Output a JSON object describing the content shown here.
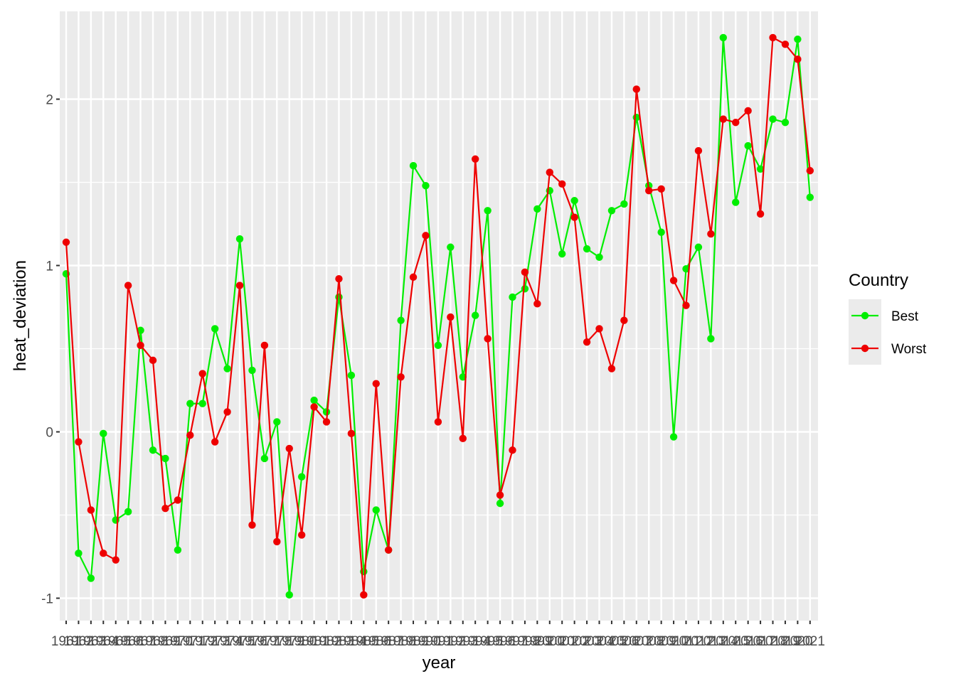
{
  "chart_data": {
    "type": "line",
    "title": "",
    "xlabel": "year",
    "ylabel": "heat_deviation",
    "x_tick_labels_note": "",
    "x": [
      1961,
      1962,
      1963,
      1964,
      1965,
      1966,
      1967,
      1968,
      1969,
      1970,
      1971,
      1972,
      1973,
      1974,
      1975,
      1976,
      1977,
      1978,
      1979,
      1980,
      1981,
      1982,
      1983,
      1984,
      1985,
      1986,
      1987,
      1988,
      1989,
      1990,
      1991,
      1992,
      1993,
      1994,
      1995,
      1996,
      1997,
      1998,
      1999,
      2000,
      2001,
      2002,
      2003,
      2004,
      2005,
      2006,
      2007,
      2008,
      2009,
      2010,
      2011,
      2012,
      2013,
      2014,
      2015,
      2016,
      2017,
      2018,
      2019,
      2020,
      2021
    ],
    "x_tick_labels": [
      "1961",
      "1962",
      "1963",
      "1964",
      "1965",
      "1966",
      "1967",
      "1968",
      "1969",
      "1970",
      "1971",
      "1972",
      "1973",
      "1974",
      "1975",
      "1976",
      "1977",
      "1978",
      "1979",
      "1980",
      "1981",
      "1982",
      "1983",
      "1984",
      "1985",
      "1986",
      "1987",
      "1988",
      "1989",
      "1990",
      "1991",
      "1992",
      "1993",
      "1994",
      "1995",
      "1996",
      "1997",
      "1998",
      "1999",
      "2000",
      "2001",
      "2002",
      "2003",
      "2004",
      "2005",
      "2006",
      "2007",
      "2008",
      "2009",
      "2010",
      "2011",
      "2012",
      "2013",
      "2014",
      "2015",
      "2016",
      "2017",
      "2018",
      "2019",
      "2020",
      "2021"
    ],
    "y_ticks": [
      -1,
      0,
      1,
      2
    ],
    "y_tick_labels": [
      "-1",
      "0",
      "1",
      "2"
    ],
    "ylim": [
      -1.13,
      2.53
    ],
    "grid": true,
    "legend": {
      "title": "Country",
      "position": "right"
    },
    "series": [
      {
        "name": "Best",
        "color": "#00ee00",
        "values": [
          0.95,
          -0.73,
          -0.88,
          -0.01,
          -0.53,
          -0.48,
          0.61,
          -0.11,
          -0.16,
          -0.71,
          0.17,
          0.17,
          0.62,
          0.38,
          1.16,
          0.37,
          -0.16,
          0.06,
          -0.98,
          -0.27,
          0.19,
          0.12,
          0.81,
          0.34,
          -0.84,
          -0.47,
          -0.71,
          0.67,
          1.6,
          1.48,
          0.52,
          1.11,
          0.33,
          0.7,
          1.33,
          -0.43,
          0.81,
          0.86,
          1.34,
          1.45,
          1.07,
          1.39,
          1.1,
          1.05,
          1.33,
          1.37,
          1.89,
          1.48,
          1.2,
          -0.03,
          0.98,
          1.11,
          0.56,
          2.37,
          1.38,
          1.72,
          1.58,
          1.88,
          1.86,
          2.36,
          1.41
        ]
      },
      {
        "name": "Worst",
        "color": "#ee0000",
        "values": [
          1.14,
          -0.06,
          -0.47,
          -0.73,
          -0.77,
          0.88,
          0.52,
          0.43,
          -0.46,
          -0.41,
          -0.02,
          0.35,
          -0.06,
          0.12,
          0.88,
          -0.56,
          0.52,
          -0.66,
          -0.1,
          -0.62,
          0.15,
          0.06,
          0.92,
          -0.01,
          -0.98,
          0.29,
          -0.71,
          0.33,
          0.93,
          1.18,
          0.06,
          0.69,
          -0.04,
          1.64,
          0.56,
          -0.38,
          -0.11,
          0.96,
          0.77,
          1.56,
          1.49,
          1.29,
          0.54,
          0.62,
          0.38,
          0.67,
          2.06,
          1.45,
          1.46,
          0.91,
          0.76,
          1.69,
          1.19,
          1.88,
          1.86,
          1.93,
          1.31,
          2.37,
          2.33,
          2.24,
          1.57
        ]
      }
    ]
  }
}
